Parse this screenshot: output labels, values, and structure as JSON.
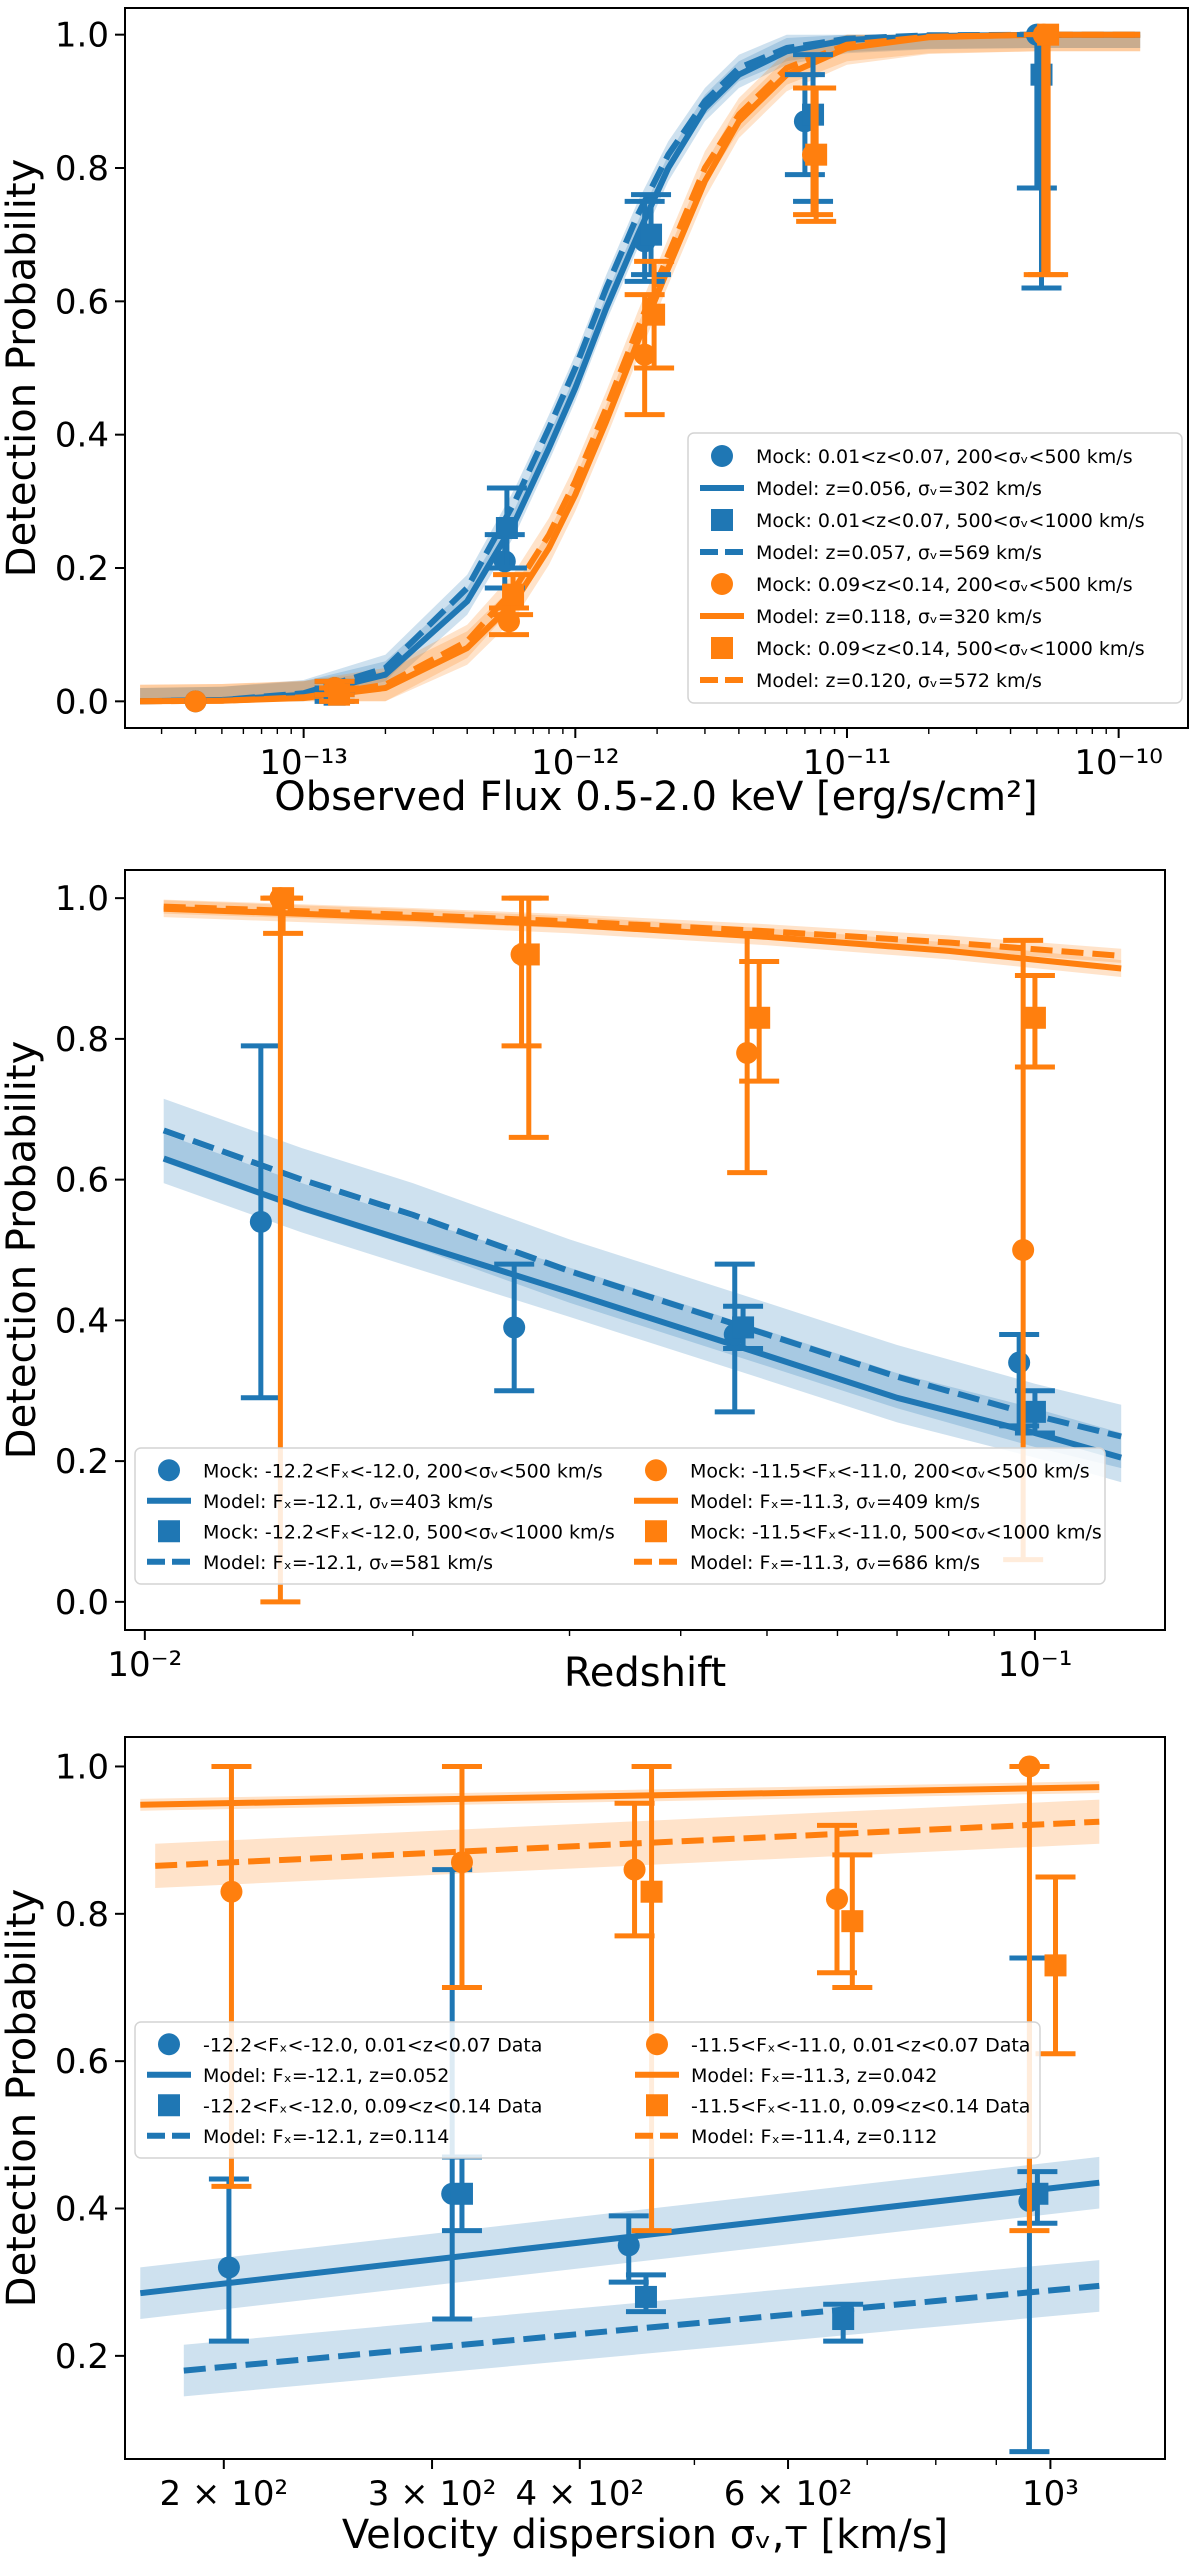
{
  "colors": {
    "blue": "#1f77b4",
    "orange": "#ff7f0e"
  },
  "chart_data": [
    {
      "type": "line",
      "xscale": "log",
      "xlabel": "Observed Flux 0.5-2.0 keV [erg/s/cm²]",
      "ylabel": "Detection Probability",
      "xlim": [
        2.2e-14,
        1.8e-10
      ],
      "ylim": [
        -0.04,
        1.04
      ],
      "xticks": [
        {
          "value": 1e-13,
          "label": "10⁻¹³"
        },
        {
          "value": 1e-12,
          "label": "10⁻¹²"
        },
        {
          "value": 1e-11,
          "label": "10⁻¹¹"
        },
        {
          "value": 1e-10,
          "label": "10⁻¹⁰"
        }
      ],
      "yticks": [
        {
          "value": 0.0,
          "label": "0.0"
        },
        {
          "value": 0.2,
          "label": "0.2"
        },
        {
          "value": 0.4,
          "label": "0.4"
        },
        {
          "value": 0.6,
          "label": "0.6"
        },
        {
          "value": 0.8,
          "label": "0.8"
        },
        {
          "value": 1.0,
          "label": "1.0"
        }
      ],
      "legend_position": "lower-right",
      "legend_columns": 1,
      "series": [
        {
          "name": "Mock: 0.01<z<0.07, 200<σᵥ<500 km/s",
          "kind": "points",
          "marker": "circle",
          "color": "blue",
          "points": [
            {
              "x": 4e-14,
              "y": 0.0
            },
            {
              "x": 1.3e-13,
              "y": 0.02,
              "lo": 0.01,
              "hi": 0.03
            },
            {
              "x": 5.5e-13,
              "y": 0.21,
              "lo": 0.17,
              "hi": 0.25
            },
            {
              "x": 1.8e-12,
              "y": 0.69,
              "lo": 0.63,
              "hi": 0.75
            },
            {
              "x": 7e-12,
              "y": 0.87,
              "lo": 0.79,
              "hi": 0.94
            },
            {
              "x": 5e-11,
              "y": 1.0,
              "lo": 0.77,
              "hi": 1.0
            }
          ]
        },
        {
          "name": "Model: z=0.056, σᵥ=302 km/s",
          "kind": "curve",
          "style": "solid",
          "color": "blue",
          "x": [
            2.5e-14,
            5e-14,
            1e-13,
            2e-13,
            4e-13,
            6e-13,
            8e-13,
            1e-12,
            1.3e-12,
            1.7e-12,
            2.2e-12,
            3e-12,
            4e-12,
            6e-12,
            1e-11,
            2e-11,
            5e-11,
            1.2e-10
          ],
          "y": [
            0.0,
            0.002,
            0.01,
            0.04,
            0.15,
            0.27,
            0.38,
            0.47,
            0.59,
            0.7,
            0.8,
            0.89,
            0.94,
            0.975,
            0.992,
            0.998,
            1.0,
            1.0
          ],
          "band": 0.02
        },
        {
          "name": "Mock: 0.01<z<0.07, 500<σᵥ<1000 km/s",
          "kind": "points",
          "marker": "square",
          "color": "blue",
          "points": [
            {
              "x": 1.3e-13,
              "y": 0.01,
              "lo": 0.0,
              "hi": 0.02
            },
            {
              "x": 5.6e-13,
              "y": 0.26,
              "lo": 0.2,
              "hi": 0.32
            },
            {
              "x": 1.9e-12,
              "y": 0.7,
              "lo": 0.64,
              "hi": 0.76
            },
            {
              "x": 7.5e-12,
              "y": 0.88,
              "lo": 0.75,
              "hi": 0.97
            },
            {
              "x": 5.2e-11,
              "y": 0.94,
              "lo": 0.62,
              "hi": 1.0
            }
          ]
        },
        {
          "name": "Model: z=0.057, σᵥ=569 km/s",
          "kind": "curve",
          "style": "dashed",
          "color": "blue",
          "x": [
            2.5e-14,
            5e-14,
            1e-13,
            2e-13,
            4e-13,
            6e-13,
            8e-13,
            1e-12,
            1.3e-12,
            1.7e-12,
            2.2e-12,
            3e-12,
            4e-12,
            6e-12,
            1e-11,
            2e-11,
            5e-11,
            1.2e-10
          ],
          "y": [
            0.0,
            0.002,
            0.012,
            0.05,
            0.17,
            0.3,
            0.41,
            0.5,
            0.62,
            0.73,
            0.82,
            0.9,
            0.95,
            0.98,
            0.994,
            0.999,
            1.0,
            1.0
          ],
          "band": 0.02
        },
        {
          "name": "Mock: 0.09<z<0.14, 200<σᵥ<500 km/s",
          "kind": "points",
          "marker": "circle",
          "color": "orange",
          "points": [
            {
              "x": 4e-14,
              "y": 0.0
            },
            {
              "x": 1.3e-13,
              "y": 0.02,
              "lo": 0.01,
              "hi": 0.03
            },
            {
              "x": 5.7e-13,
              "y": 0.12,
              "lo": 0.1,
              "hi": 0.14
            },
            {
              "x": 1.8e-12,
              "y": 0.52,
              "lo": 0.43,
              "hi": 0.61
            },
            {
              "x": 7.5e-12,
              "y": 0.82,
              "lo": 0.73,
              "hi": 0.92
            },
            {
              "x": 5.3e-11,
              "y": 1.0,
              "lo": 0.64,
              "hi": 1.0
            }
          ]
        },
        {
          "name": "Model: z=0.118, σᵥ=320 km/s",
          "kind": "curve",
          "style": "solid",
          "color": "orange",
          "x": [
            2.5e-14,
            5e-14,
            1e-13,
            2e-13,
            4e-13,
            6e-13,
            8e-13,
            1e-12,
            1.3e-12,
            1.7e-12,
            2.2e-12,
            3e-12,
            4e-12,
            6e-12,
            1e-11,
            2e-11,
            5e-11,
            1.2e-10
          ],
          "y": [
            0.0,
            0.001,
            0.005,
            0.02,
            0.08,
            0.15,
            0.23,
            0.31,
            0.42,
            0.54,
            0.65,
            0.78,
            0.87,
            0.94,
            0.98,
            0.996,
            1.0,
            1.0
          ],
          "band": 0.025
        },
        {
          "name": "Mock: 0.09<z<0.14, 500<σᵥ<1000 km/s",
          "kind": "points",
          "marker": "square",
          "color": "orange",
          "points": [
            {
              "x": 1.35e-13,
              "y": 0.01,
              "lo": 0.0,
              "hi": 0.02
            },
            {
              "x": 5.9e-13,
              "y": 0.16,
              "lo": 0.13,
              "hi": 0.19
            },
            {
              "x": 1.95e-12,
              "y": 0.58,
              "lo": 0.5,
              "hi": 0.66
            },
            {
              "x": 7.7e-12,
              "y": 0.82,
              "lo": 0.72,
              "hi": 0.92
            },
            {
              "x": 5.5e-11,
              "y": 1.0,
              "lo": 0.64,
              "hi": 1.0
            }
          ]
        },
        {
          "name": "Model: z=0.120, σᵥ=572 km/s",
          "kind": "curve",
          "style": "dashed",
          "color": "orange",
          "x": [
            2.5e-14,
            5e-14,
            1e-13,
            2e-13,
            4e-13,
            6e-13,
            8e-13,
            1e-12,
            1.3e-12,
            1.7e-12,
            2.2e-12,
            3e-12,
            4e-12,
            6e-12,
            1e-11,
            2e-11,
            5e-11,
            1.2e-10
          ],
          "y": [
            0.0,
            0.001,
            0.006,
            0.025,
            0.09,
            0.17,
            0.25,
            0.33,
            0.44,
            0.56,
            0.67,
            0.8,
            0.88,
            0.95,
            0.985,
            0.997,
            1.0,
            1.0
          ],
          "band": 0.025
        }
      ]
    },
    {
      "type": "line",
      "xscale": "log",
      "xlabel": "Redshift",
      "ylabel": "Detection Probability",
      "xlim": [
        0.0095,
        0.14
      ],
      "ylim": [
        -0.04,
        1.04
      ],
      "xticks": [
        {
          "value": 0.01,
          "label": "10⁻²"
        },
        {
          "value": 0.1,
          "label": "10⁻¹"
        }
      ],
      "yticks": [
        {
          "value": 0.0,
          "label": "0.0"
        },
        {
          "value": 0.2,
          "label": "0.2"
        },
        {
          "value": 0.4,
          "label": "0.4"
        },
        {
          "value": 0.6,
          "label": "0.6"
        },
        {
          "value": 0.8,
          "label": "0.8"
        },
        {
          "value": 1.0,
          "label": "1.0"
        }
      ],
      "legend_position": "bottom",
      "legend_columns": 2,
      "series": [
        {
          "name": "Mock: -12.2<Fₓ<-12.0, 200<σᵥ<500 km/s",
          "kind": "points",
          "marker": "circle",
          "color": "blue",
          "points": [
            {
              "x": 0.0135,
              "y": 0.54,
              "lo": 0.29,
              "hi": 0.79
            },
            {
              "x": 0.026,
              "y": 0.39,
              "lo": 0.3,
              "hi": 0.48
            },
            {
              "x": 0.046,
              "y": 0.38,
              "lo": 0.27,
              "hi": 0.48
            },
            {
              "x": 0.096,
              "y": 0.34,
              "lo": 0.25,
              "hi": 0.38
            }
          ]
        },
        {
          "name": "Model: Fₓ=-12.1, σᵥ=403 km/s",
          "kind": "curve",
          "style": "solid",
          "color": "blue",
          "x": [
            0.0105,
            0.015,
            0.02,
            0.03,
            0.05,
            0.07,
            0.1,
            0.125
          ],
          "y": [
            0.63,
            0.56,
            0.51,
            0.44,
            0.35,
            0.29,
            0.24,
            0.205
          ],
          "band": 0.035
        },
        {
          "name": "Mock: -12.2<Fₓ<-12.0, 500<σᵥ<1000 km/s",
          "kind": "points",
          "marker": "square",
          "color": "blue",
          "points": [
            {
              "x": 0.047,
              "y": 0.39,
              "lo": 0.36,
              "hi": 0.42
            },
            {
              "x": 0.1,
              "y": 0.27,
              "lo": 0.24,
              "hi": 0.3
            }
          ]
        },
        {
          "name": "Model: Fₓ=-12.1, σᵥ=581 km/s",
          "kind": "curve",
          "style": "dashed",
          "color": "blue",
          "x": [
            0.0105,
            0.015,
            0.02,
            0.03,
            0.05,
            0.07,
            0.1,
            0.125
          ],
          "y": [
            0.67,
            0.6,
            0.55,
            0.47,
            0.38,
            0.32,
            0.265,
            0.235
          ],
          "band": 0.045
        },
        {
          "name": "Mock: -11.5<Fₓ<-11.0, 200<σᵥ<500 km/s",
          "kind": "points",
          "marker": "circle",
          "color": "orange",
          "points": [
            {
              "x": 0.0142,
              "y": 1.0,
              "lo": 0.0,
              "hi": 1.0
            },
            {
              "x": 0.0265,
              "y": 0.92,
              "lo": 0.79,
              "hi": 1.0
            },
            {
              "x": 0.0475,
              "y": 0.78,
              "lo": 0.61,
              "hi": 0.95
            },
            {
              "x": 0.097,
              "y": 0.5,
              "lo": 0.06,
              "hi": 0.94
            }
          ]
        },
        {
          "name": "Model: Fₓ=-11.3, σᵥ=409 km/s",
          "kind": "curve",
          "style": "solid",
          "color": "orange",
          "x": [
            0.0105,
            0.02,
            0.03,
            0.05,
            0.08,
            0.125
          ],
          "y": [
            0.985,
            0.972,
            0.962,
            0.945,
            0.925,
            0.9
          ],
          "band": 0.012
        },
        {
          "name": "Mock: -11.5<Fₓ<-11.0, 500<σᵥ<1000 km/s",
          "kind": "points",
          "marker": "square",
          "color": "orange",
          "points": [
            {
              "x": 0.0143,
              "y": 1.0,
              "lo": 0.95,
              "hi": 1.0
            },
            {
              "x": 0.027,
              "y": 0.92,
              "lo": 0.66,
              "hi": 1.0
            },
            {
              "x": 0.049,
              "y": 0.83,
              "lo": 0.74,
              "hi": 0.91
            },
            {
              "x": 0.1,
              "y": 0.83,
              "lo": 0.76,
              "hi": 0.89
            }
          ]
        },
        {
          "name": "Model: Fₓ=-11.3, σᵥ=686 km/s",
          "kind": "curve",
          "style": "dashed",
          "color": "orange",
          "x": [
            0.0105,
            0.02,
            0.03,
            0.05,
            0.08,
            0.125
          ],
          "y": [
            0.988,
            0.976,
            0.967,
            0.953,
            0.937,
            0.918
          ],
          "band": 0.01
        }
      ]
    },
    {
      "type": "line",
      "xscale": "log",
      "xlabel": "Velocity dispersion σᵥ,ᴛ [km/s]",
      "ylabel": "Detection Probability",
      "xlim": [
        165,
        1250
      ],
      "ylim": [
        0.06,
        1.04
      ],
      "xticks": [
        {
          "value": 200,
          "label": "2 × 10²"
        },
        {
          "value": 300,
          "label": "3 × 10²"
        },
        {
          "value": 400,
          "label": "4 × 10²"
        },
        {
          "value": 600,
          "label": "6 × 10²"
        },
        {
          "value": 1000,
          "label": "10³"
        }
      ],
      "yticks": [
        {
          "value": 0.2,
          "label": "0.2"
        },
        {
          "value": 0.4,
          "label": "0.4"
        },
        {
          "value": 0.6,
          "label": "0.6"
        },
        {
          "value": 0.8,
          "label": "0.8"
        },
        {
          "value": 1.0,
          "label": "1.0"
        }
      ],
      "legend_position": "center-left",
      "legend_columns": 2,
      "series": [
        {
          "name": "-12.2<Fₓ<-12.0, 0.01<z<0.07 Data",
          "kind": "points",
          "marker": "circle",
          "color": "blue",
          "points": [
            {
              "x": 202,
              "y": 0.32,
              "lo": 0.22,
              "hi": 0.44
            },
            {
              "x": 312,
              "y": 0.42,
              "lo": 0.25,
              "hi": 0.86
            },
            {
              "x": 440,
              "y": 0.35,
              "lo": 0.3,
              "hi": 0.39
            },
            {
              "x": 960,
              "y": 0.41,
              "lo": 0.07,
              "hi": 0.74
            }
          ]
        },
        {
          "name": "Model: Fₓ=-12.1, z=0.052",
          "kind": "curve",
          "style": "solid",
          "color": "blue",
          "x": [
            170,
            1100
          ],
          "y": [
            0.285,
            0.435
          ],
          "band": 0.035
        },
        {
          "name": "-12.2<Fₓ<-12.0, 0.09<z<0.14 Data",
          "kind": "points",
          "marker": "square",
          "color": "blue",
          "points": [
            {
              "x": 318,
              "y": 0.42,
              "lo": 0.37,
              "hi": 0.47
            },
            {
              "x": 455,
              "y": 0.28,
              "lo": 0.26,
              "hi": 0.31
            },
            {
              "x": 668,
              "y": 0.25,
              "lo": 0.22,
              "hi": 0.27
            },
            {
              "x": 975,
              "y": 0.42,
              "lo": 0.38,
              "hi": 0.45
            }
          ]
        },
        {
          "name": "Model: Fₓ=-12.1, z=0.114",
          "kind": "curve",
          "style": "dashed",
          "color": "blue",
          "x": [
            185,
            1100
          ],
          "y": [
            0.18,
            0.295
          ],
          "band": 0.035
        },
        {
          "name": "-11.5<Fₓ<-11.0, 0.01<z<0.07 Data",
          "kind": "points",
          "marker": "circle",
          "color": "orange",
          "points": [
            {
              "x": 203,
              "y": 0.83,
              "lo": 0.43,
              "hi": 1.0
            },
            {
              "x": 318,
              "y": 0.87,
              "lo": 0.7,
              "hi": 1.0
            },
            {
              "x": 445,
              "y": 0.86,
              "lo": 0.77,
              "hi": 0.95
            },
            {
              "x": 660,
              "y": 0.82,
              "lo": 0.72,
              "hi": 0.92
            },
            {
              "x": 960,
              "y": 1.0,
              "lo": 0.37,
              "hi": 1.0
            }
          ]
        },
        {
          "name": "Model: Fₓ=-11.3, z=0.042",
          "kind": "curve",
          "style": "solid",
          "color": "orange",
          "x": [
            170,
            1100
          ],
          "y": [
            0.948,
            0.972
          ],
          "band": 0.008
        },
        {
          "name": "-11.5<Fₓ<-11.0, 0.09<z<0.14 Data",
          "kind": "points",
          "marker": "square",
          "color": "orange",
          "points": [
            {
              "x": 460,
              "y": 0.83,
              "lo": 0.37,
              "hi": 1.0
            },
            {
              "x": 680,
              "y": 0.79,
              "lo": 0.7,
              "hi": 0.88
            },
            {
              "x": 1010,
              "y": 0.73,
              "lo": 0.61,
              "hi": 0.85
            }
          ]
        },
        {
          "name": "Model: Fₓ=-11.4, z=0.112",
          "kind": "curve",
          "style": "dashed",
          "color": "orange",
          "x": [
            175,
            1100
          ],
          "y": [
            0.865,
            0.925
          ],
          "band": 0.03
        }
      ]
    }
  ]
}
